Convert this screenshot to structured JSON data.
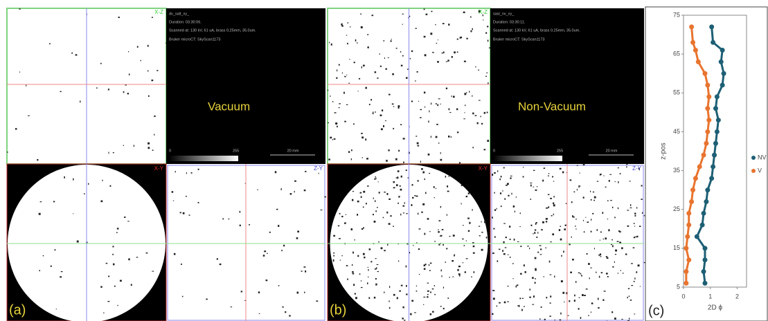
{
  "panel_a": {
    "xz_label": "X-Z",
    "file": "dv_salt_xy_",
    "duration": "Duration: 03:30:06.",
    "scan": "Scanned at: 130 kV, 61 uA, brass 0.25mm, 35.0um.",
    "scanner": "Bruker microCT: SkyScan1173",
    "title": "Vacuum",
    "scale_min": "0",
    "scale_max": "255",
    "scale_bar": "20 mm",
    "xy_label": "X-Y",
    "zy_label": "Z-Y",
    "letter": "(a)"
  },
  "panel_b": {
    "xz_label": "X-Z",
    "file": "sasl_nv_xy_",
    "duration": "Duration: 03:30:11.",
    "scan": "Scanned at: 130 kV, 61 uA, brass 0.25mm, 35.0um.",
    "scanner": "Bruker microCT: SkyScan1173",
    "title": "Non-Vacuum",
    "scale_min": "0",
    "scale_max": "255",
    "scale_bar": "20 mm",
    "xy_label": "X-Y",
    "zy_label": "Z-Y",
    "letter": "(b)"
  },
  "chart_data": {
    "type": "line",
    "letter": "(c)",
    "xlabel": "2D ϕ",
    "ylabel": "z-pos",
    "z": [
      6,
      9,
      12,
      15,
      18,
      21,
      24,
      27,
      30,
      33,
      36,
      39,
      42,
      45,
      48,
      51,
      54,
      57,
      60,
      63,
      66,
      68,
      72
    ],
    "series": [
      {
        "name": "NV",
        "color": "#1d5f74",
        "values": [
          0.8,
          0.75,
          0.8,
          0.8,
          0.5,
          0.7,
          0.75,
          0.85,
          0.9,
          1.05,
          1.1,
          1.15,
          1.2,
          1.25,
          1.3,
          1.2,
          1.25,
          1.45,
          1.5,
          1.4,
          1.45,
          1.1,
          1.05
        ]
      },
      {
        "name": "V",
        "color": "#e8742f",
        "values": [
          0.1,
          0.1,
          0.2,
          0.1,
          0.15,
          0.2,
          0.2,
          0.3,
          0.35,
          0.45,
          0.6,
          0.75,
          0.85,
          0.9,
          0.95,
          0.9,
          0.95,
          0.9,
          0.8,
          0.55,
          0.45,
          0.35,
          0.3
        ]
      }
    ],
    "xlim": [
      0,
      2.35
    ],
    "xticks": [
      0,
      1,
      2
    ],
    "ylim": [
      5,
      75
    ],
    "yticks": [
      5,
      15,
      25,
      35,
      45,
      55,
      65,
      75
    ],
    "legend": "right"
  }
}
